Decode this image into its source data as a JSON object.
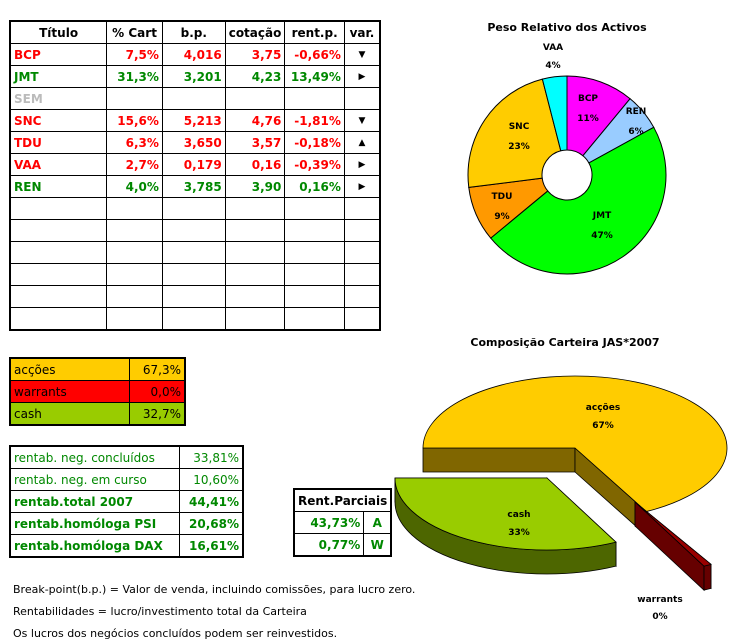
{
  "holdings": {
    "headers": [
      "Título",
      "% Cart",
      "b.p.",
      "cotação",
      "rent.p.",
      "var."
    ],
    "rows": [
      {
        "t": "BCP",
        "pct": "7,5%",
        "bp": "4,016",
        "cot": "3,75",
        "rent": "-0,66%",
        "var": "down",
        "color": "red"
      },
      {
        "t": "JMT",
        "pct": "31,3%",
        "bp": "3,201",
        "cot": "4,23",
        "rent": "13,49%",
        "var": "right",
        "color": "grn"
      },
      {
        "t": "SEM",
        "pct": "",
        "bp": "",
        "cot": "",
        "rent": "",
        "var": "",
        "color": "gry"
      },
      {
        "t": "SNC",
        "pct": "15,6%",
        "bp": "5,213",
        "cot": "4,76",
        "rent": "-1,81%",
        "var": "down",
        "color": "red"
      },
      {
        "t": "TDU",
        "pct": "6,3%",
        "bp": "3,650",
        "cot": "3,57",
        "rent": "-0,18%",
        "var": "up",
        "color": "red"
      },
      {
        "t": "VAA",
        "pct": "2,7%",
        "bp": "0,179",
        "cot": "0,16",
        "rent": "-0,39%",
        "var": "right",
        "color": "red"
      },
      {
        "t": "REN",
        "pct": "4,0%",
        "bp": "3,785",
        "cot": "3,90",
        "rent": "0,16%",
        "var": "right",
        "color": "grn"
      }
    ],
    "empty_rows": 6
  },
  "allocation": [
    {
      "label": "acções",
      "value": "67,3%",
      "bg": "#ffcc00",
      "fg": "#000"
    },
    {
      "label": "warrants",
      "value": "0,0%",
      "bg": "#ff0000",
      "fg": "#000"
    },
    {
      "label": "cash",
      "value": "32,7%",
      "bg": "#99cc00",
      "fg": "#000"
    }
  ],
  "returns": [
    {
      "label": "rentab. neg. concluídos",
      "value": "33,81%",
      "bold": false
    },
    {
      "label": "rentab. neg. em curso",
      "value": "10,60%",
      "bold": false
    },
    {
      "label": "rentab.total 2007",
      "value": "44,41%",
      "bold": true
    },
    {
      "label": "rentab.homóloga PSI",
      "value": "20,68%",
      "bold": true
    },
    {
      "label": "rentab.homóloga DAX",
      "value": "16,61%",
      "bold": true
    }
  ],
  "partial": {
    "header": "Rent.Parciais",
    "rows": [
      {
        "value": "43,73%",
        "code": "A"
      },
      {
        "value": "0,77%",
        "code": "W"
      }
    ]
  },
  "notes": [
    "Break-point(b.p.) = Valor de venda, incluindo comissões, para lucro zero.",
    "Rentabilidades = lucro/investimento total da Carteira",
    "Os lucros dos negócios concluídos podem ser reinvestidos."
  ],
  "chart_data": [
    {
      "type": "pie",
      "title": "Peso Relativo dos Activos",
      "categories": [
        "BCP",
        "REN",
        "JMT",
        "TDU",
        "SNC",
        "VAA"
      ],
      "values": [
        11,
        6,
        47,
        9,
        23,
        4
      ],
      "labels": [
        "11%",
        "6%",
        "47%",
        "9%",
        "23%",
        "4%"
      ],
      "colors": [
        "#ff00ff",
        "#99ccff",
        "#00ff00",
        "#ff9900",
        "#ffcc00",
        "#00ffff"
      ],
      "donut": true
    },
    {
      "type": "pie",
      "title": "Composição Carteira JAS*2007",
      "categories": [
        "acções",
        "cash",
        "warrants"
      ],
      "values": [
        67,
        33,
        0
      ],
      "labels": [
        "67%",
        "33%",
        "0%"
      ],
      "colors": [
        "#ffcc00",
        "#99cc00",
        "#990000"
      ],
      "style": "3d-exploded"
    }
  ]
}
